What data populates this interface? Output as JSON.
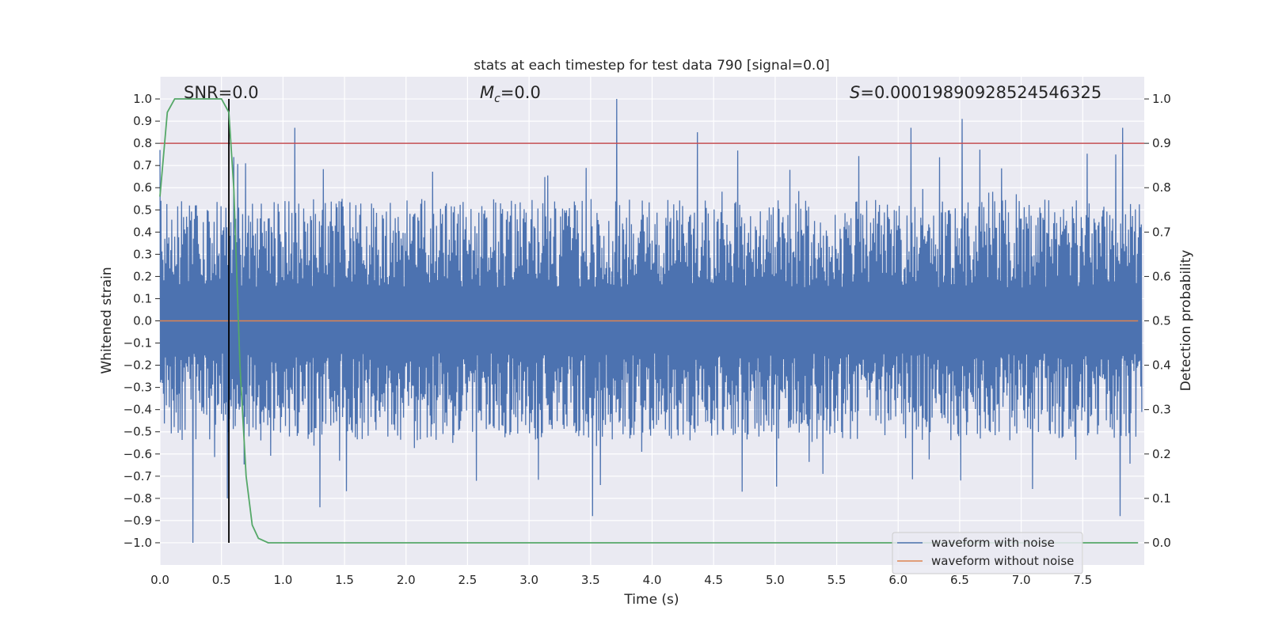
{
  "chart_data": {
    "type": "line",
    "title": "stats at each timestep for test data 790 [signal=0.0]",
    "xlabel": "Time (s)",
    "ylabel": "Whitened strain",
    "ylabel_right": "Detection probability",
    "xlim": [
      0.0,
      8.0
    ],
    "ylim": [
      -1.1,
      1.1
    ],
    "ylim_right": [
      -0.05,
      1.05
    ],
    "x_ticks": [
      0.0,
      0.5,
      1.0,
      1.5,
      2.0,
      2.5,
      3.0,
      3.5,
      4.0,
      4.5,
      5.0,
      5.5,
      6.0,
      6.5,
      7.0,
      7.5
    ],
    "x_tick_labels": [
      "0.0",
      "0.5",
      "1.0",
      "1.5",
      "2.0",
      "2.5",
      "3.0",
      "3.5",
      "4.0",
      "4.5",
      "5.0",
      "5.5",
      "6.0",
      "6.5",
      "7.0",
      "7.5"
    ],
    "y_ticks": [
      1.0,
      0.9,
      0.8,
      0.7,
      0.6,
      0.5,
      0.4,
      0.3,
      0.2,
      0.1,
      0.0,
      -0.1,
      -0.2,
      -0.3,
      -0.4,
      -0.5,
      -0.6,
      -0.7,
      -0.8,
      -0.9,
      -1.0
    ],
    "y_tick_labels": [
      "1.0",
      "0.9",
      "0.8",
      "0.7",
      "0.6",
      "0.5",
      "0.4",
      "0.3",
      "0.2",
      "0.1",
      "0.0",
      "−0.1",
      "−0.2",
      "−0.3",
      "−0.4",
      "−0.5",
      "−0.6",
      "−0.7",
      "−0.8",
      "−0.9",
      "−1.0"
    ],
    "y_right_ticks": [
      1.0,
      0.9,
      0.8,
      0.7,
      0.6,
      0.5,
      0.4,
      0.3,
      0.2,
      0.1,
      0.0
    ],
    "y_right_tick_labels": [
      "1.0",
      "0.9",
      "0.8",
      "0.7",
      "0.6",
      "0.5",
      "0.4",
      "0.3",
      "0.2",
      "0.1",
      "0.0"
    ],
    "annotations": {
      "snr": "SNR=0.0",
      "mc_symbol": "M",
      "mc_subscript": "c",
      "mc_value": "=0.0",
      "s_symbol": "S",
      "s_value": "=0.00019890928524546325"
    },
    "threshold_right": 0.9,
    "vertical_line_x": 0.56,
    "grid": true,
    "legend_position": "lower-right",
    "series": [
      {
        "name": "waveform with noise",
        "color": "#4c72b0",
        "axis": "left",
        "kind": "noise",
        "approx_envelope": {
          "typical_max": 0.45,
          "typical_min": -0.4,
          "max": 1.0,
          "min": -1.0
        },
        "peaks": [
          {
            "x": 0.27,
            "y": -1.0
          },
          {
            "x": 0.55,
            "y": -0.8
          },
          {
            "x": 1.1,
            "y": 0.87
          },
          {
            "x": 1.3,
            "y": -0.84
          },
          {
            "x": 3.52,
            "y": -0.88
          },
          {
            "x": 3.71,
            "y": 1.0
          },
          {
            "x": 4.37,
            "y": 0.85
          },
          {
            "x": 6.1,
            "y": 0.87
          },
          {
            "x": 6.52,
            "y": 0.91
          },
          {
            "x": 7.82,
            "y": 0.87
          },
          {
            "x": 7.8,
            "y": -0.88
          }
        ]
      },
      {
        "name": "waveform without noise",
        "color": "#dd8452",
        "axis": "left",
        "x": [
          0.0,
          8.0
        ],
        "y": [
          0.0,
          0.0
        ]
      },
      {
        "name": "detection probability",
        "color": "#55a868",
        "axis": "right",
        "x": [
          0.0,
          0.06,
          0.12,
          0.3,
          0.5,
          0.56,
          0.6,
          0.65,
          0.7,
          0.75,
          0.8,
          0.88,
          1.0,
          7.95
        ],
        "y": [
          0.78,
          0.97,
          1.0,
          1.0,
          1.0,
          0.97,
          0.8,
          0.4,
          0.15,
          0.04,
          0.01,
          0.0,
          0.0,
          0.0
        ]
      }
    ],
    "colors": {
      "background": "#eaeaf2",
      "grid": "#ffffff",
      "noise": "#4c72b0",
      "clean": "#dd8452",
      "probability": "#55a868",
      "threshold": "#c44e52",
      "vline": "#000000"
    }
  }
}
